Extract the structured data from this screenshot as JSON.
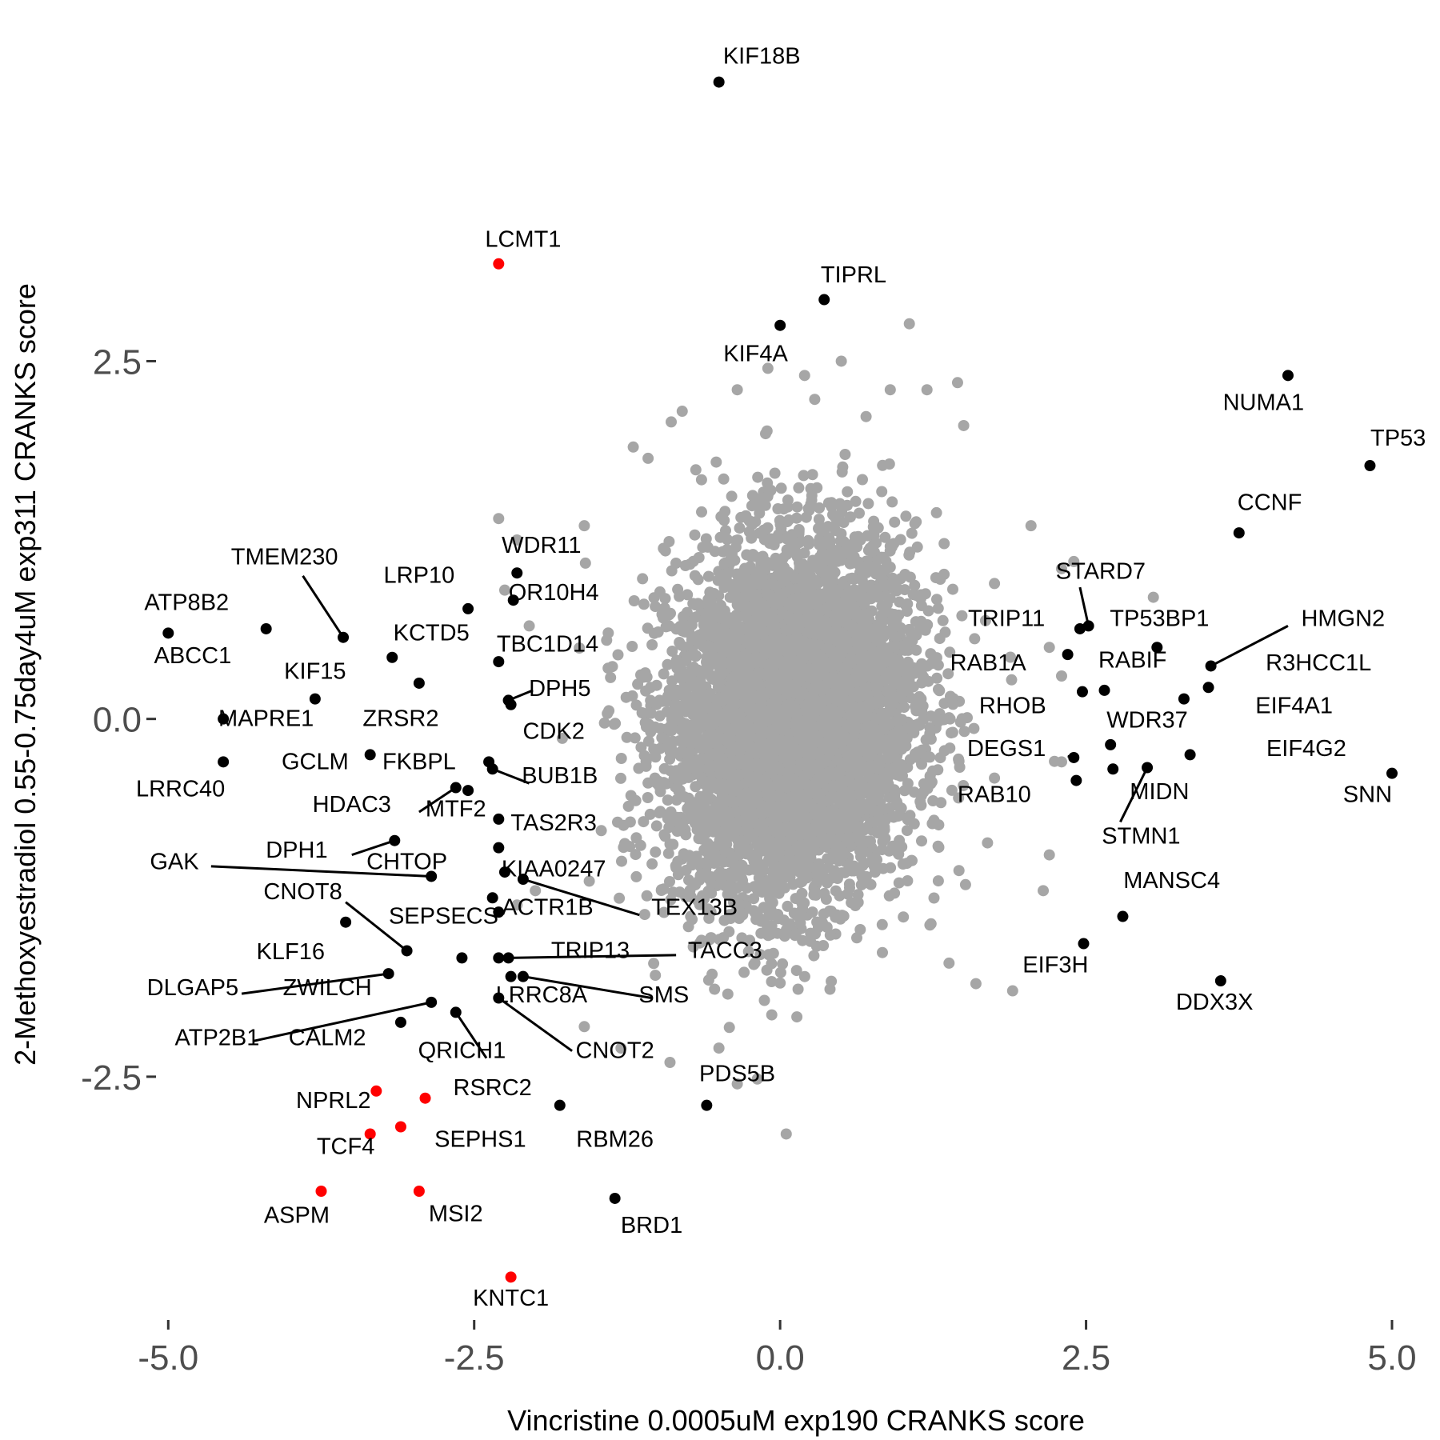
{
  "chart_data": {
    "type": "scatter",
    "xlabel": "Vincristine 0.0005uM exp190 CRANKS score",
    "ylabel": "2-Methoxyestradiol 0.55-0.75day4uM exp311 CRANKS score",
    "xlim": [
      -5.1,
      5.0
    ],
    "ylim": [
      -4.2,
      4.8
    ],
    "x_ticks": [
      {
        "value": -5.0,
        "label": "-5.0"
      },
      {
        "value": -2.5,
        "label": "-2.5"
      },
      {
        "value": 0.0,
        "label": "0.0"
      },
      {
        "value": 2.5,
        "label": "2.5"
      },
      {
        "value": 5.0,
        "label": "5.0"
      }
    ],
    "y_ticks": [
      {
        "value": 2.5,
        "label": "2.5"
      },
      {
        "value": 0.0,
        "label": "0.0"
      },
      {
        "value": -2.5,
        "label": "-2.5"
      }
    ],
    "grid": false,
    "legend": "none",
    "colors": {
      "background_points": "#a6a6a6",
      "highlight": "#000000",
      "selected": "#ff0000",
      "tick_text": "#4d4d4d"
    },
    "background_cloud": {
      "color": "#a6a6a6",
      "x_center": 0.1,
      "y_center": 0.0,
      "x_sd": 0.5,
      "y_sd": 0.62,
      "correlation": 0.1
    },
    "outlier_points": [
      {
        "x": -0.1,
        "y": 2.45
      },
      {
        "x": 0.5,
        "y": 2.5
      },
      {
        "x": 0.2,
        "y": 2.4
      },
      {
        "x": -0.35,
        "y": 2.3
      },
      {
        "x": -0.8,
        "y": 2.15
      },
      {
        "x": -1.2,
        "y": 1.9
      },
      {
        "x": -1.6,
        "y": 1.35
      },
      {
        "x": -2.3,
        "y": 1.4
      },
      {
        "x": -2.15,
        "y": 1.25
      },
      {
        "x": -2.25,
        "y": 0.9
      },
      {
        "x": -2.05,
        "y": 0.65
      },
      {
        "x": 1.5,
        "y": 2.05
      },
      {
        "x": 1.45,
        "y": 2.35
      },
      {
        "x": 0.9,
        "y": 2.3
      },
      {
        "x": 1.2,
        "y": 2.3
      },
      {
        "x": 2.05,
        "y": 1.35
      },
      {
        "x": 2.3,
        "y": 1.05
      },
      {
        "x": 2.4,
        "y": 1.1
      },
      {
        "x": 3.05,
        "y": 0.85
      },
      {
        "x": 2.2,
        "y": 0.5
      },
      {
        "x": 2.3,
        "y": 0.3
      },
      {
        "x": 2.15,
        "y": -1.2
      },
      {
        "x": 2.2,
        "y": -0.95
      },
      {
        "x": 2.3,
        "y": -0.3
      },
      {
        "x": 1.9,
        "y": -1.9
      },
      {
        "x": 1.6,
        "y": -1.85
      },
      {
        "x": 0.05,
        "y": -2.9
      },
      {
        "x": -0.5,
        "y": -2.3
      },
      {
        "x": -0.9,
        "y": -2.4
      },
      {
        "x": -1.6,
        "y": -2.15
      },
      {
        "x": -1.3,
        "y": -2.3
      },
      {
        "x": -2.0,
        "y": -1.2
      },
      {
        "x": -2.15,
        "y": -1.3
      },
      {
        "x": -0.35,
        "y": -2.55
      }
    ],
    "labeled_points": [
      {
        "label": "KIF18B",
        "x": -0.5,
        "y": 4.45,
        "color": "highlight",
        "label_x": -0.15,
        "label_y": 4.58
      },
      {
        "label": "LCMT1",
        "x": -2.3,
        "y": 3.18,
        "color": "selected",
        "label_x": -2.1,
        "label_y": 3.3
      },
      {
        "label": "TIPRL",
        "x": 0.36,
        "y": 2.93,
        "color": "highlight",
        "label_x": 0.6,
        "label_y": 3.05
      },
      {
        "label": "KIF4A",
        "x": 0.0,
        "y": 2.75,
        "color": "highlight",
        "label_x": -0.2,
        "label_y": 2.5
      },
      {
        "label": "NUMA1",
        "x": 4.15,
        "y": 2.4,
        "color": "highlight",
        "label_x": 3.95,
        "label_y": 2.16
      },
      {
        "label": "TP53",
        "x": 4.82,
        "y": 1.77,
        "color": "highlight",
        "label_x": 5.05,
        "label_y": 1.91
      },
      {
        "label": "CCNF",
        "x": 3.75,
        "y": 1.3,
        "color": "highlight",
        "label_x": 4.0,
        "label_y": 1.46
      },
      {
        "label": "STARD7",
        "x": 2.52,
        "y": 0.65,
        "color": "highlight",
        "label_x": 2.62,
        "label_y": 0.98,
        "line_to": [
          2.45,
          0.92
        ]
      },
      {
        "label": "TRIP11",
        "x": 2.45,
        "y": 0.63,
        "color": "highlight",
        "label_x": 1.85,
        "label_y": 0.65
      },
      {
        "label": "TP53BP1",
        "x": 3.08,
        "y": 0.5,
        "color": "highlight",
        "label_x": 3.1,
        "label_y": 0.65
      },
      {
        "label": "HMGN2",
        "x": 3.52,
        "y": 0.37,
        "color": "highlight",
        "label_x": 4.6,
        "label_y": 0.65,
        "line_to": [
          4.15,
          0.65
        ]
      },
      {
        "label": "RAB1A",
        "x": 2.35,
        "y": 0.45,
        "color": "highlight",
        "label_x": 1.7,
        "label_y": 0.34
      },
      {
        "label": "RABIF",
        "x": 2.65,
        "y": 0.2,
        "color": "highlight",
        "label_x": 2.88,
        "label_y": 0.36
      },
      {
        "label": "R3HCC1L",
        "x": 3.5,
        "y": 0.22,
        "color": "highlight",
        "label_x": 4.4,
        "label_y": 0.34
      },
      {
        "label": "RHOB",
        "x": 2.47,
        "y": 0.19,
        "color": "highlight",
        "label_x": 1.9,
        "label_y": 0.04
      },
      {
        "label": "EIF4A1",
        "x": 3.3,
        "y": 0.14,
        "color": "highlight",
        "label_x": 4.2,
        "label_y": 0.04
      },
      {
        "label": "WDR37",
        "x": 2.7,
        "y": -0.18,
        "color": "highlight",
        "label_x": 3.0,
        "label_y": -0.06
      },
      {
        "label": "DEGS1",
        "x": 2.4,
        "y": -0.27,
        "color": "highlight",
        "label_x": 1.85,
        "label_y": -0.26,
        "line_to": [
          2.35,
          -0.26
        ]
      },
      {
        "label": "EIF4G2",
        "x": 3.35,
        "y": -0.25,
        "color": "highlight",
        "label_x": 4.3,
        "label_y": -0.26
      },
      {
        "label": "SNN",
        "x": 5.0,
        "y": -0.38,
        "color": "highlight",
        "label_x": 4.8,
        "label_y": -0.58
      },
      {
        "label": "MIDN",
        "x": 2.72,
        "y": -0.35,
        "color": "highlight",
        "label_x": 3.1,
        "label_y": -0.56
      },
      {
        "label": "RAB10",
        "x": 2.42,
        "y": -0.43,
        "color": "highlight",
        "label_x": 1.75,
        "label_y": -0.58
      },
      {
        "label": "STMN1",
        "x": 3.0,
        "y": -0.34,
        "color": "highlight",
        "label_x": 2.95,
        "label_y": -0.87,
        "line_to": [
          2.78,
          -0.72
        ]
      },
      {
        "label": "MANSC4",
        "x": 2.8,
        "y": -1.38,
        "color": "highlight",
        "label_x": 3.2,
        "label_y": -1.18
      },
      {
        "label": "EIF3H",
        "x": 2.48,
        "y": -1.57,
        "color": "highlight",
        "label_x": 2.25,
        "label_y": -1.77
      },
      {
        "label": "DDX3X",
        "x": 3.6,
        "y": -1.83,
        "color": "highlight",
        "label_x": 3.55,
        "label_y": -2.03
      },
      {
        "label": "WDR11",
        "x": -2.15,
        "y": 1.02,
        "color": "highlight",
        "label_x": -1.95,
        "label_y": 1.16
      },
      {
        "label": "OR10H4",
        "x": -2.18,
        "y": 0.83,
        "color": "highlight",
        "label_x": -1.85,
        "label_y": 0.83
      },
      {
        "label": "TMEM230",
        "x": -3.57,
        "y": 0.57,
        "color": "highlight",
        "label_x": -4.05,
        "label_y": 1.08,
        "line_to": [
          -3.9,
          1.0
        ]
      },
      {
        "label": "LRP10",
        "x": -2.55,
        "y": 0.77,
        "color": "highlight",
        "label_x": -2.95,
        "label_y": 0.95
      },
      {
        "label": "ATP8B2",
        "x": -5.0,
        "y": 0.6,
        "color": "highlight",
        "label_x": -4.85,
        "label_y": 0.76
      },
      {
        "label": "ABCC1",
        "x": -4.2,
        "y": 0.63,
        "color": "highlight",
        "label_x": -4.8,
        "label_y": 0.39
      },
      {
        "label": "KCTD5",
        "x": -3.17,
        "y": 0.43,
        "color": "highlight",
        "label_x": -2.85,
        "label_y": 0.55
      },
      {
        "label": "TBC1D14",
        "x": -2.3,
        "y": 0.4,
        "color": "highlight",
        "label_x": -1.9,
        "label_y": 0.47
      },
      {
        "label": "KIF15",
        "x": -3.8,
        "y": 0.14,
        "color": "highlight",
        "label_x": -3.8,
        "label_y": 0.28
      },
      {
        "label": "DPH5",
        "x": -2.22,
        "y": 0.13,
        "color": "highlight",
        "label_x": -1.8,
        "label_y": 0.16,
        "line_to": [
          -2.02,
          0.2
        ]
      },
      {
        "label": "MAPRE1",
        "x": -4.55,
        "y": 0.0,
        "color": "highlight",
        "label_x": -4.2,
        "label_y": -0.05
      },
      {
        "label": "ZRSR2",
        "x": -2.95,
        "y": 0.25,
        "color": "highlight",
        "label_x": -3.1,
        "label_y": -0.05
      },
      {
        "label": "CDK2",
        "x": -2.2,
        "y": 0.1,
        "color": "highlight",
        "label_x": -1.85,
        "label_y": -0.14
      },
      {
        "label": "GCLM",
        "x": -3.35,
        "y": -0.25,
        "color": "highlight",
        "label_x": -3.8,
        "label_y": -0.35
      },
      {
        "label": "FKBPL",
        "x": -2.38,
        "y": -0.3,
        "color": "highlight",
        "label_x": -2.95,
        "label_y": -0.35
      },
      {
        "label": "LRRC40",
        "x": -4.55,
        "y": -0.3,
        "color": "highlight",
        "label_x": -4.9,
        "label_y": -0.54
      },
      {
        "label": "BUB1B",
        "x": -2.35,
        "y": -0.35,
        "color": "highlight",
        "label_x": -1.8,
        "label_y": -0.45,
        "line_to": [
          -2.05,
          -0.45
        ]
      },
      {
        "label": "HDAC3",
        "x": -2.65,
        "y": -0.48,
        "color": "highlight",
        "label_x": -3.5,
        "label_y": -0.65,
        "line_to": [
          -2.95,
          -0.65
        ]
      },
      {
        "label": "MTF2",
        "x": -2.55,
        "y": -0.5,
        "color": "highlight",
        "label_x": -2.65,
        "label_y": -0.68
      },
      {
        "label": "TAS2R3",
        "x": -2.3,
        "y": -0.7,
        "color": "highlight",
        "label_x": -1.85,
        "label_y": -0.78
      },
      {
        "label": "DPH1",
        "x": -3.15,
        "y": -0.85,
        "color": "highlight",
        "label_x": -3.95,
        "label_y": -0.97,
        "line_to": [
          -3.5,
          -0.95
        ]
      },
      {
        "label": "CHTOP",
        "x": -2.3,
        "y": -0.9,
        "color": "highlight",
        "label_x": -3.05,
        "label_y": -1.05
      },
      {
        "label": "GAK",
        "x": -2.85,
        "y": -1.1,
        "color": "highlight",
        "label_x": -4.95,
        "label_y": -1.05,
        "line_to": [
          -4.65,
          -1.03
        ]
      },
      {
        "label": "KIAA0247",
        "x": -2.25,
        "y": -1.07,
        "color": "highlight",
        "label_x": -1.85,
        "label_y": -1.1
      },
      {
        "label": "CNOT8",
        "x": -3.05,
        "y": -1.62,
        "color": "highlight",
        "label_x": -3.9,
        "label_y": -1.26,
        "line_to": [
          -3.55,
          -1.28
        ]
      },
      {
        "label": "SEPSECS",
        "x": -2.35,
        "y": -1.25,
        "color": "highlight",
        "label_x": -2.75,
        "label_y": -1.43
      },
      {
        "label": "ACTR1B",
        "x": -2.3,
        "y": -1.35,
        "color": "highlight",
        "label_x": -1.9,
        "label_y": -1.37
      },
      {
        "label": "TEX13B",
        "x": -2.1,
        "y": -1.12,
        "color": "highlight",
        "label_x": -0.7,
        "label_y": -1.37,
        "line_to": [
          -1.15,
          -1.37
        ]
      },
      {
        "label": "KLF16",
        "x": -3.55,
        "y": -1.42,
        "color": "highlight",
        "label_x": -4.0,
        "label_y": -1.68
      },
      {
        "label": "TRIP13",
        "x": -2.3,
        "y": -1.67,
        "color": "highlight",
        "label_x": -1.55,
        "label_y": -1.67
      },
      {
        "label": "TACC3",
        "x": -2.22,
        "y": -1.67,
        "color": "highlight",
        "label_x": -0.45,
        "label_y": -1.67,
        "line_to": [
          -0.85,
          -1.65
        ]
      },
      {
        "label": "DLGAP5",
        "x": -3.2,
        "y": -1.78,
        "color": "highlight",
        "label_x": -4.8,
        "label_y": -1.93,
        "line_to": [
          -4.4,
          -1.92
        ]
      },
      {
        "label": "ZWILCH",
        "x": -2.6,
        "y": -1.67,
        "color": "highlight",
        "label_x": -3.7,
        "label_y": -1.93
      },
      {
        "label": "LRRC8A",
        "x": -2.2,
        "y": -1.8,
        "color": "highlight",
        "label_x": -1.95,
        "label_y": -1.98
      },
      {
        "label": "SMS",
        "x": -2.1,
        "y": -1.8,
        "color": "highlight",
        "label_x": -0.95,
        "label_y": -1.98,
        "line_to": [
          -1.05,
          -1.95
        ]
      },
      {
        "label": "ATP2B1",
        "x": -2.85,
        "y": -1.98,
        "color": "highlight",
        "label_x": -4.6,
        "label_y": -2.28,
        "line_to": [
          -4.3,
          -2.25
        ]
      },
      {
        "label": "CALM2",
        "x": -3.1,
        "y": -2.12,
        "color": "highlight",
        "label_x": -3.7,
        "label_y": -2.28
      },
      {
        "label": "QRICH1",
        "x": -2.65,
        "y": -2.05,
        "color": "highlight",
        "label_x": -2.6,
        "label_y": -2.37,
        "line_to": [
          -2.4,
          -2.37
        ]
      },
      {
        "label": "CNOT2",
        "x": -2.3,
        "y": -1.95,
        "color": "highlight",
        "label_x": -1.35,
        "label_y": -2.37,
        "line_to": [
          -1.7,
          -2.32
        ]
      },
      {
        "label": "NPRL2",
        "x": -3.3,
        "y": -2.6,
        "color": "selected",
        "label_x": -3.65,
        "label_y": -2.72
      },
      {
        "label": "RSRC2",
        "x": -2.9,
        "y": -2.65,
        "color": "selected",
        "label_x": -2.35,
        "label_y": -2.63
      },
      {
        "label": "PDS5B",
        "x": -0.6,
        "y": -2.7,
        "color": "highlight",
        "label_x": -0.35,
        "label_y": -2.53
      },
      {
        "label": "RBM26",
        "x": -1.8,
        "y": -2.7,
        "color": "highlight",
        "label_x": -1.35,
        "label_y": -2.99
      },
      {
        "label": "SEPHS1",
        "x": -3.1,
        "y": -2.85,
        "color": "selected",
        "label_x": -2.45,
        "label_y": -2.99
      },
      {
        "label": "TCF4",
        "x": -3.35,
        "y": -2.9,
        "color": "selected",
        "label_x": -3.55,
        "label_y": -3.04
      },
      {
        "label": "ASPM",
        "x": -3.75,
        "y": -3.3,
        "color": "selected",
        "label_x": -3.95,
        "label_y": -3.52
      },
      {
        "label": "MSI2",
        "x": -2.95,
        "y": -3.3,
        "color": "selected",
        "label_x": -2.65,
        "label_y": -3.51
      },
      {
        "label": "BRD1",
        "x": -1.35,
        "y": -3.35,
        "color": "highlight",
        "label_x": -1.05,
        "label_y": -3.59
      },
      {
        "label": "KNTC1",
        "x": -2.2,
        "y": -3.9,
        "color": "selected",
        "label_x": -2.2,
        "label_y": -4.1
      }
    ]
  }
}
